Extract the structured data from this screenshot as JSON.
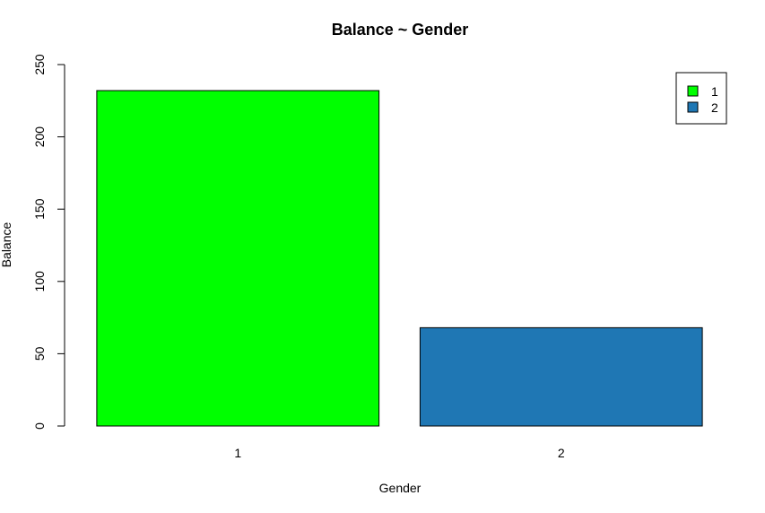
{
  "chart_data": {
    "type": "bar",
    "title": "Balance ~ Gender",
    "xlabel": "Gender",
    "ylabel": "Balance",
    "categories": [
      "1",
      "2"
    ],
    "values": [
      232,
      68
    ],
    "colors": [
      "#00ff00",
      "#1f77b4"
    ],
    "ylim": [
      0,
      250
    ],
    "yticks": [
      0,
      50,
      100,
      150,
      200,
      250
    ],
    "legend": {
      "position": "top-right",
      "entries": [
        {
          "label": "1",
          "color": "#00ff00"
        },
        {
          "label": "2",
          "color": "#1f77b4"
        }
      ]
    },
    "grid": false
  }
}
